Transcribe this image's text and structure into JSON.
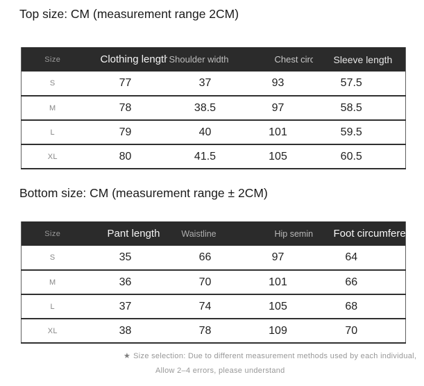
{
  "colors": {
    "background": "#ffffff",
    "header_bg": "#2b2b2b",
    "header_text_bright": "#f3f3f3",
    "header_text_dim": "#9a9a9a",
    "body_text": "#1f1f1f",
    "muted_text": "#979797",
    "row_divider": "#2f2f2f"
  },
  "chart_data": [
    {
      "type": "table",
      "title": "Top size: CM (measurement range 2CM)",
      "columns": [
        "Size",
        "Clothing length",
        "Shoulder width",
        "Chest circulation",
        "Sleeve length"
      ],
      "rows": [
        [
          "S",
          "77",
          "37",
          "93",
          "57.5"
        ],
        [
          "M",
          "78",
          "38.5",
          "97",
          "58.5"
        ],
        [
          "L",
          "79",
          "40",
          "101",
          "59.5"
        ],
        [
          "XL",
          "80",
          "41.5",
          "105",
          "60.5"
        ]
      ]
    },
    {
      "type": "table",
      "title": "Bottom size: CM (measurement range ± 2CM)",
      "columns": [
        "Size",
        "Pant length",
        "Waistline",
        "Hip seminar",
        "Foot circumference"
      ],
      "rows": [
        [
          "S",
          "35",
          "66",
          "97",
          "64"
        ],
        [
          "M",
          "36",
          "70",
          "101",
          "66"
        ],
        [
          "L",
          "37",
          "74",
          "105",
          "68"
        ],
        [
          "XL",
          "38",
          "78",
          "109",
          "70"
        ]
      ]
    }
  ],
  "footnote": {
    "star": "★",
    "line1": "Size selection: Due to different measurement methods used by each individual,",
    "line2": "Allow 2–4 errors, please understand"
  }
}
